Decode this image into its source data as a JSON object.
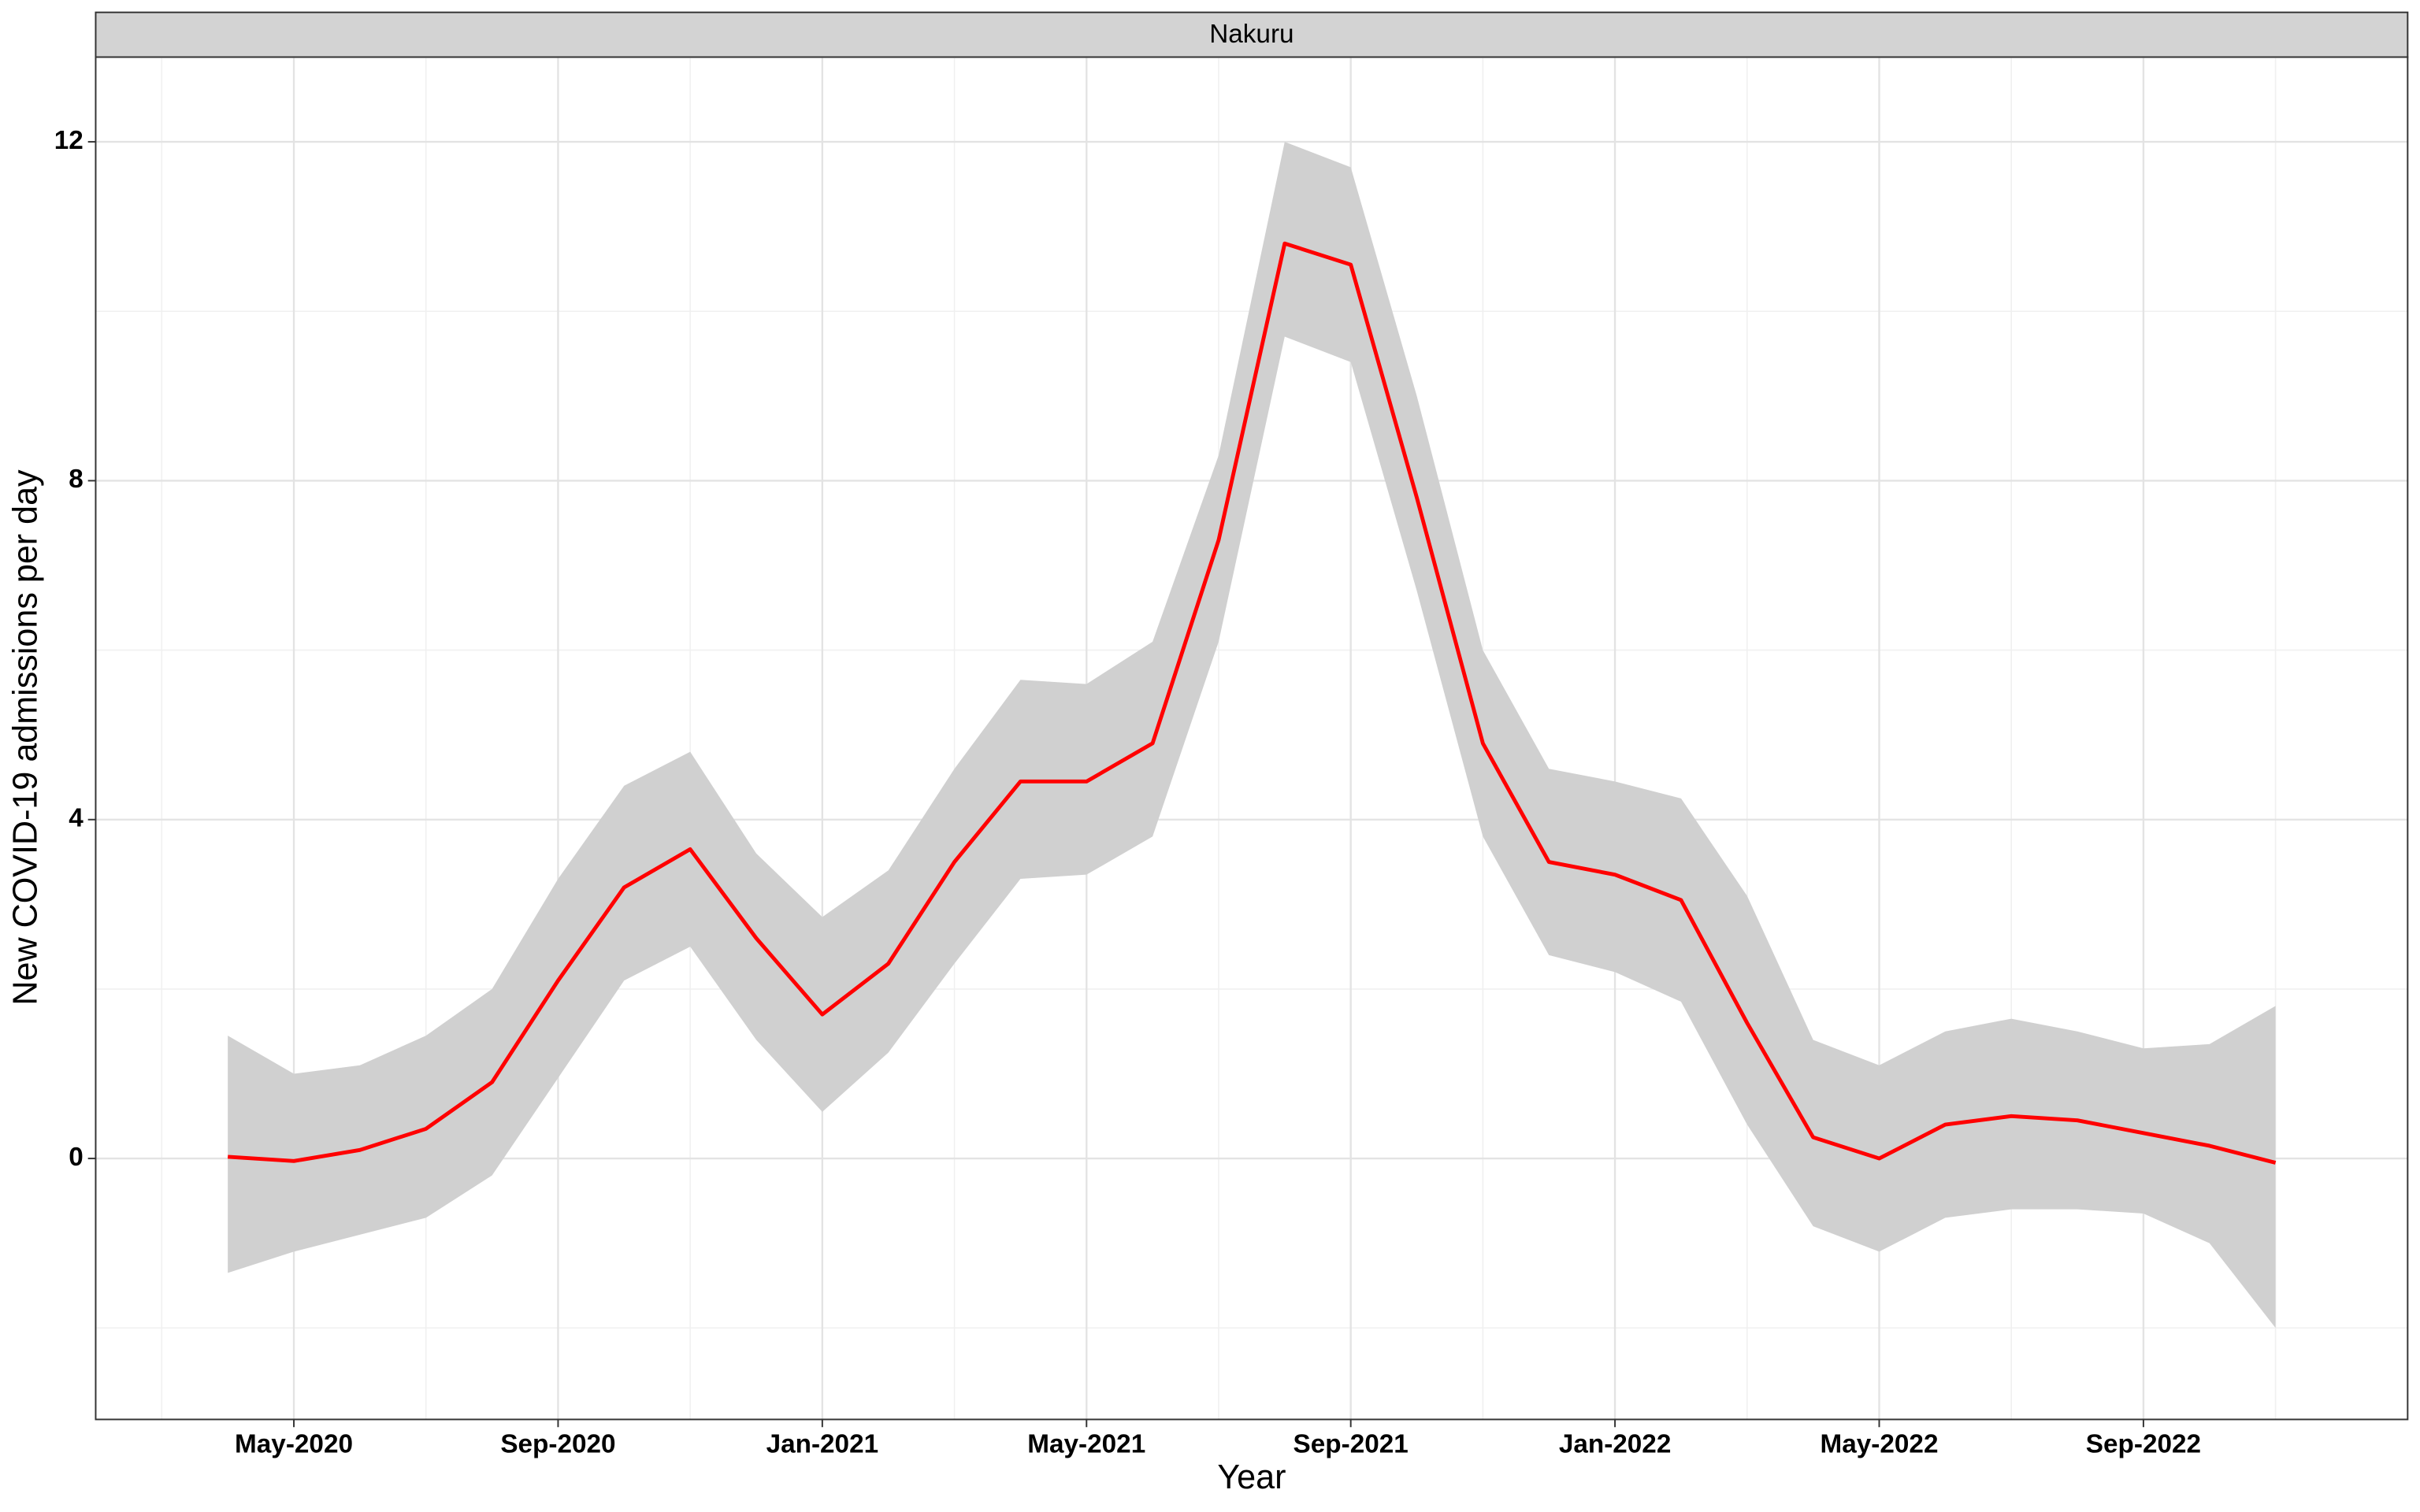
{
  "chart_data": {
    "type": "line",
    "strip_title": "Nakuru",
    "x_label": "Year",
    "y_label": "New COVID-19 admissions per day",
    "color": "#ff0000",
    "band_color": "#d0d0d0",
    "grid": true,
    "x": [
      "2020-04",
      "2020-05",
      "2020-06",
      "2020-07",
      "2020-08",
      "2020-09",
      "2020-10",
      "2020-11",
      "2020-12",
      "2021-01",
      "2021-02",
      "2021-03",
      "2021-04",
      "2021-05",
      "2021-06",
      "2021-07",
      "2021-08",
      "2021-09",
      "2021-10",
      "2021-11",
      "2021-12",
      "2022-01",
      "2022-02",
      "2022-03",
      "2022-04",
      "2022-05",
      "2022-06",
      "2022-07",
      "2022-08",
      "2022-09",
      "2022-10",
      "2022-11"
    ],
    "values": [
      0.02,
      -0.03,
      0.1,
      0.35,
      0.9,
      2.1,
      3.2,
      3.65,
      2.6,
      1.7,
      2.3,
      3.5,
      4.45,
      4.45,
      4.9,
      7.3,
      10.8,
      10.55,
      7.8,
      4.9,
      3.5,
      3.35,
      3.05,
      1.6,
      0.25,
      0.0,
      0.4,
      0.5,
      0.45,
      0.3,
      0.15,
      -0.05
    ],
    "lower": [
      -1.35,
      -1.1,
      -0.9,
      -0.7,
      -0.2,
      0.95,
      2.1,
      2.5,
      1.4,
      0.55,
      1.25,
      2.3,
      3.3,
      3.35,
      3.8,
      6.1,
      9.7,
      9.4,
      6.7,
      3.8,
      2.4,
      2.2,
      1.85,
      0.4,
      -0.8,
      -1.1,
      -0.7,
      -0.6,
      -0.6,
      -0.65,
      -1.0,
      -2.0
    ],
    "upper": [
      1.45,
      1.0,
      1.1,
      1.45,
      2.0,
      3.3,
      4.4,
      4.8,
      3.6,
      2.85,
      3.4,
      4.6,
      5.65,
      5.6,
      6.1,
      8.3,
      12.0,
      11.7,
      9.0,
      6.0,
      4.6,
      4.45,
      4.25,
      3.1,
      1.4,
      1.1,
      1.5,
      1.65,
      1.5,
      1.3,
      1.35,
      1.8
    ],
    "xlim": [
      "2020-02",
      "2023-01"
    ],
    "xticks": [
      {
        "value": "2020-05",
        "label": "May-2020"
      },
      {
        "value": "2020-09",
        "label": "Sep-2020"
      },
      {
        "value": "2021-01",
        "label": "Jan-2021"
      },
      {
        "value": "2021-05",
        "label": "May-2021"
      },
      {
        "value": "2021-09",
        "label": "Sep-2021"
      },
      {
        "value": "2022-01",
        "label": "Jan-2022"
      },
      {
        "value": "2022-05",
        "label": "May-2022"
      },
      {
        "value": "2022-09",
        "label": "Sep-2022"
      }
    ],
    "x_minor_ticks": [
      "2020-03",
      "2020-07",
      "2020-11",
      "2021-03",
      "2021-07",
      "2021-11",
      "2022-03",
      "2022-07",
      "2022-11"
    ],
    "ylim": [
      -3.08,
      13.0
    ],
    "yticks": [
      0,
      4,
      8,
      12
    ],
    "y_minor_ticks": [
      -2,
      2,
      6,
      10
    ]
  }
}
